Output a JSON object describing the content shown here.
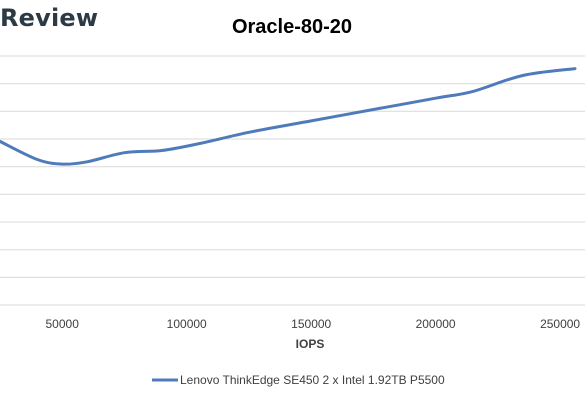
{
  "brand": {
    "text": "Review"
  },
  "chart_data": {
    "type": "line",
    "title": "Oracle-80-20",
    "xlabel": "IOPS",
    "ylabel": "",
    "x_ticks": [
      50000,
      100000,
      150000,
      200000,
      250000
    ],
    "x_tick_labels": [
      "50000",
      "100000",
      "150000",
      "200000",
      "250000"
    ],
    "xlim": [
      25000,
      260000
    ],
    "ylim": [
      0,
      1.1
    ],
    "y_gridlines": 9,
    "grid": true,
    "legend_position": "bottom",
    "series": [
      {
        "name": "Lenovo ThinkEdge SE450 2 x Intel 1.92TB P5500",
        "color": "#4f7bbb",
        "x": [
          25000,
          40000,
          50000,
          60000,
          75000,
          90000,
          105000,
          125000,
          150000,
          175000,
          200000,
          215000,
          235000,
          256000
        ],
        "y": [
          0.72,
          0.64,
          0.62,
          0.63,
          0.67,
          0.68,
          0.71,
          0.76,
          0.81,
          0.86,
          0.91,
          0.94,
          1.01,
          1.04
        ]
      }
    ]
  }
}
